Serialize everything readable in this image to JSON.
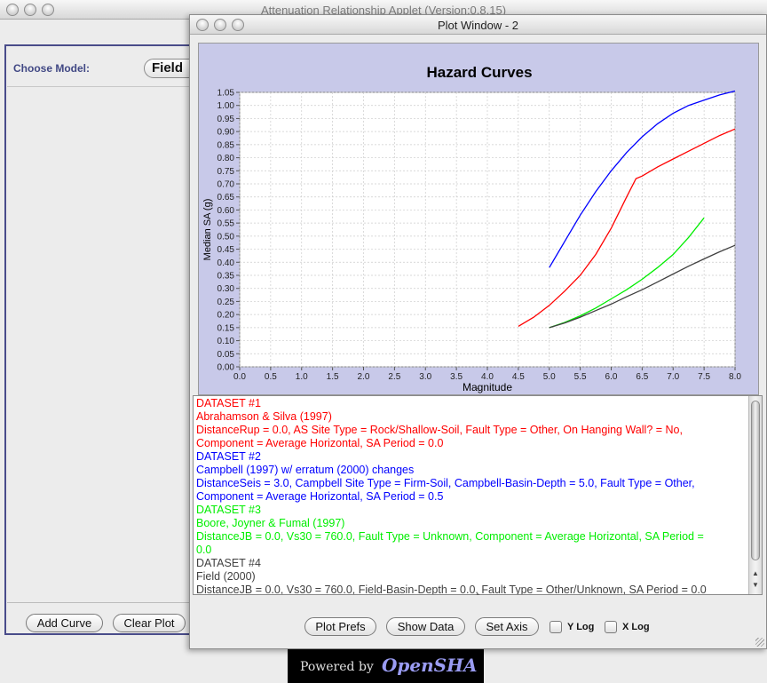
{
  "main_window": {
    "title": "Attenuation Relationship Applet (Version:0.8.15)",
    "choose_model_label": "Choose Model:",
    "model_value": "Field",
    "add_curve_label": "Add Curve",
    "clear_plot_label": "Clear Plot",
    "powered_by": "Powered by",
    "logo_text": "OpenSHA"
  },
  "plot_window": {
    "title": "Plot Window - 2",
    "divider_glyph": "ˆ",
    "plot_prefs_label": "Plot Prefs",
    "show_data_label": "Show Data",
    "set_axis_label": "Set Axis",
    "ylog_label": "Y Log",
    "xlog_label": "X Log",
    "ylog_checked": false,
    "xlog_checked": false
  },
  "datasets_text": [
    {
      "text": "DATASET #1",
      "color": "#ff0000"
    },
    {
      "text": "Abrahamson & Silva (1997)",
      "color": "#ff0000"
    },
    {
      "text": "DistanceRup = 0.0, AS Site Type = Rock/Shallow-Soil, Fault Type = Other, On Hanging Wall? = No,",
      "color": "#ff0000"
    },
    {
      "text": "Component = Average Horizontal, SA Period = 0.0",
      "color": "#ff0000"
    },
    {
      "text": "DATASET #2",
      "color": "#0000ff"
    },
    {
      "text": "Campbell (1997) w/ erratum (2000) changes",
      "color": "#0000ff"
    },
    {
      "text": "DistanceSeis = 3.0, Campbell Site Type = Firm-Soil, Campbell-Basin-Depth = 5.0, Fault Type = Other,",
      "color": "#0000ff"
    },
    {
      "text": "Component = Average Horizontal, SA Period = 0.5",
      "color": "#0000ff"
    },
    {
      "text": "DATASET #3",
      "color": "#00ee00"
    },
    {
      "text": "Boore, Joyner & Fumal (1997)",
      "color": "#00ee00"
    },
    {
      "text": "DistanceJB = 0.0, Vs30 = 760.0, Fault Type = Unknown, Component = Average Horizontal, SA Period =",
      "color": "#00ee00"
    },
    {
      "text": "0.0",
      "color": "#00ee00"
    },
    {
      "text": "DATASET #4",
      "color": "#404040"
    },
    {
      "text": "Field (2000)",
      "color": "#404040"
    },
    {
      "text": "DistanceJB = 0.0, Vs30 = 760.0, Field-Basin-Depth = 0.0, Fault Type = Other/Unknown, SA Period = 0.0",
      "color": "#404040"
    }
  ],
  "chart_data": {
    "type": "line",
    "title": "Hazard Curves",
    "xlabel": "Magnitude",
    "ylabel": "Median SA (g)",
    "xlim": [
      0.0,
      8.0
    ],
    "ylim": [
      0.0,
      1.05
    ],
    "xticks": [
      "0.0",
      "0.5",
      "1.0",
      "1.5",
      "2.0",
      "2.5",
      "3.0",
      "3.5",
      "4.0",
      "4.5",
      "5.0",
      "5.5",
      "6.0",
      "6.5",
      "7.0",
      "7.5",
      "8.0"
    ],
    "yticks": [
      "0.00",
      "0.05",
      "0.10",
      "0.15",
      "0.20",
      "0.25",
      "0.30",
      "0.35",
      "0.40",
      "0.45",
      "0.50",
      "0.55",
      "0.60",
      "0.65",
      "0.70",
      "0.75",
      "0.80",
      "0.85",
      "0.90",
      "0.95",
      "1.00",
      "1.05"
    ],
    "grid": true,
    "series": [
      {
        "color": "#0000ff",
        "x": [
          5.0,
          5.25,
          5.5,
          5.75,
          6.0,
          6.25,
          6.5,
          6.75,
          7.0,
          7.25,
          7.5,
          7.75,
          8.0
        ],
        "y": [
          0.38,
          0.48,
          0.58,
          0.67,
          0.75,
          0.82,
          0.88,
          0.93,
          0.97,
          1.0,
          1.02,
          1.04,
          1.055
        ]
      },
      {
        "color": "#ff0000",
        "x": [
          4.5,
          4.75,
          5.0,
          5.25,
          5.5,
          5.75,
          6.0,
          6.25,
          6.4,
          6.5,
          6.75,
          7.0,
          7.25,
          7.5,
          7.75,
          8.0
        ],
        "y": [
          0.155,
          0.19,
          0.235,
          0.29,
          0.35,
          0.43,
          0.53,
          0.65,
          0.72,
          0.73,
          0.765,
          0.795,
          0.825,
          0.855,
          0.885,
          0.91
        ]
      },
      {
        "color": "#00ee00",
        "x": [
          5.0,
          5.25,
          5.5,
          5.75,
          6.0,
          6.25,
          6.5,
          6.75,
          7.0,
          7.25,
          7.5
        ],
        "y": [
          0.15,
          0.17,
          0.195,
          0.225,
          0.26,
          0.295,
          0.335,
          0.38,
          0.43,
          0.495,
          0.57
        ]
      },
      {
        "color": "#404040",
        "x": [
          5.0,
          5.25,
          5.5,
          5.75,
          6.0,
          6.25,
          6.5,
          6.75,
          7.0,
          7.25,
          7.5,
          7.75,
          8.0
        ],
        "y": [
          0.15,
          0.168,
          0.19,
          0.215,
          0.24,
          0.268,
          0.295,
          0.325,
          0.355,
          0.385,
          0.413,
          0.44,
          0.465
        ]
      }
    ]
  }
}
